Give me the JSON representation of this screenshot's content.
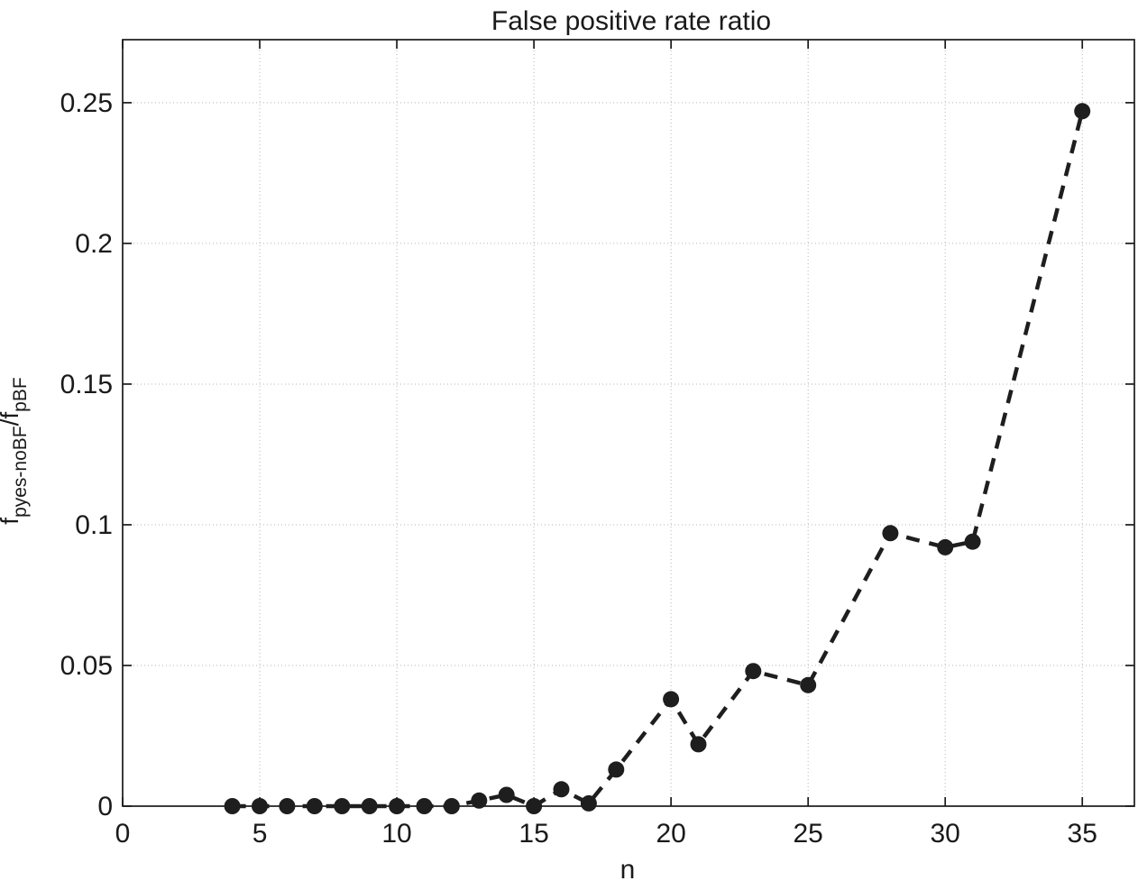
{
  "title": "False positive rate ratio",
  "axes": {
    "xlabel": "n",
    "ylabel_parts": [
      {
        "text": "f",
        "sub": false
      },
      {
        "text": "pyes-noBF",
        "sub": true
      },
      {
        "text": "/f",
        "sub": false
      },
      {
        "text": "pBF",
        "sub": true
      }
    ]
  },
  "chart_data": {
    "type": "line",
    "title": "False positive rate ratio",
    "xlabel": "n",
    "ylabel": "f_pyes-noBF/f_pBF",
    "line_style": "dashed",
    "marker": "filled-circle",
    "grid": "dotted",
    "legend": "none",
    "series": [
      {
        "name": "false-positive-rate-ratio",
        "x": [
          4,
          5,
          6,
          7,
          8,
          9,
          10,
          11,
          12,
          13,
          14,
          15,
          16,
          17,
          18,
          20,
          21,
          23,
          25,
          28,
          30,
          31,
          35
        ],
        "y": [
          0,
          0,
          0,
          0,
          0,
          0,
          0,
          0,
          0,
          0.002,
          0.004,
          0,
          0.006,
          0.001,
          0.013,
          0.038,
          0.022,
          0.048,
          0.043,
          0.097,
          0.092,
          0.094,
          0.247
        ]
      }
    ],
    "xlim": [
      0,
      36.9
    ],
    "ylim": [
      0,
      0.2724
    ],
    "xticks": [
      0,
      5,
      10,
      15,
      20,
      25,
      30,
      35
    ],
    "xtick_labels": [
      "0",
      "5",
      "10",
      "15",
      "20",
      "25",
      "30",
      "35"
    ],
    "yticks": [
      0,
      0.05,
      0.1,
      0.15,
      0.2,
      0.25
    ],
    "ytick_labels": [
      "0",
      "0.05",
      "0.1",
      "0.15",
      "0.2",
      "0.25"
    ],
    "colors": {
      "line": "#1e1e1e",
      "marker": "#1e1e1e",
      "grid": "#b5b5b5",
      "axis": "#1a1a1a",
      "text": "#1a1a1a",
      "background": "#ffffff"
    }
  }
}
